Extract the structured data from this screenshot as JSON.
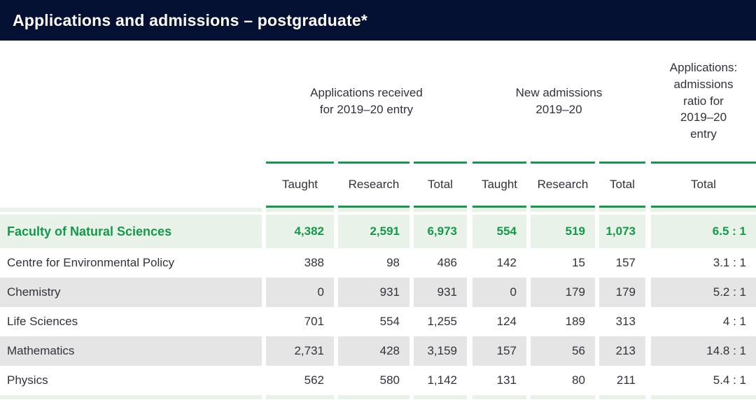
{
  "title": "Applications and admissions – postgraduate*",
  "colors": {
    "title_bar_bg": "#051133",
    "title_text": "#ffffff",
    "accent_green": "#16994c",
    "highlight_row_bg": "#e9f2e9",
    "highlight_row_text": "#12994a",
    "zebra_row_bg": "#e5e5e5",
    "body_text": "#32323c"
  },
  "table": {
    "groups": [
      {
        "name": "applications-received",
        "lines": [
          "Applications received",
          "for  2019–20 entry"
        ]
      },
      {
        "name": "new-admissions",
        "lines": [
          "New admissions",
          "2019–20"
        ]
      },
      {
        "name": "applications-admissions-ratio",
        "lines": [
          "Applications:",
          "admissions",
          "ratio for",
          "2019–20",
          "entry"
        ]
      }
    ],
    "columns": [
      "Taught",
      "Research",
      "Total",
      "Taught",
      "Research",
      "Total",
      "Total"
    ],
    "rows": [
      {
        "label": "Faculty of Natural Sciences",
        "highlight": true,
        "values": [
          "4,382",
          "2,591",
          "6,973",
          "554",
          "519",
          "1,073",
          "6.5 : 1"
        ]
      },
      {
        "label": "Centre for Environmental Policy",
        "highlight": false,
        "values": [
          "388",
          "98",
          "486",
          "142",
          "15",
          "157",
          "3.1 : 1"
        ]
      },
      {
        "label": "Chemistry",
        "highlight": false,
        "values": [
          "0",
          "931",
          "931",
          "0",
          "179",
          "179",
          "5.2 : 1"
        ]
      },
      {
        "label": "Life Sciences",
        "highlight": false,
        "values": [
          "701",
          "554",
          "1,255",
          "124",
          "189",
          "313",
          "4 : 1"
        ]
      },
      {
        "label": "Mathematics",
        "highlight": false,
        "values": [
          "2,731",
          "428",
          "3,159",
          "157",
          "56",
          "213",
          "14.8 : 1"
        ]
      },
      {
        "label": "Physics",
        "highlight": false,
        "values": [
          "562",
          "580",
          "1,142",
          "131",
          "80",
          "211",
          "5.4 : 1"
        ]
      }
    ]
  }
}
